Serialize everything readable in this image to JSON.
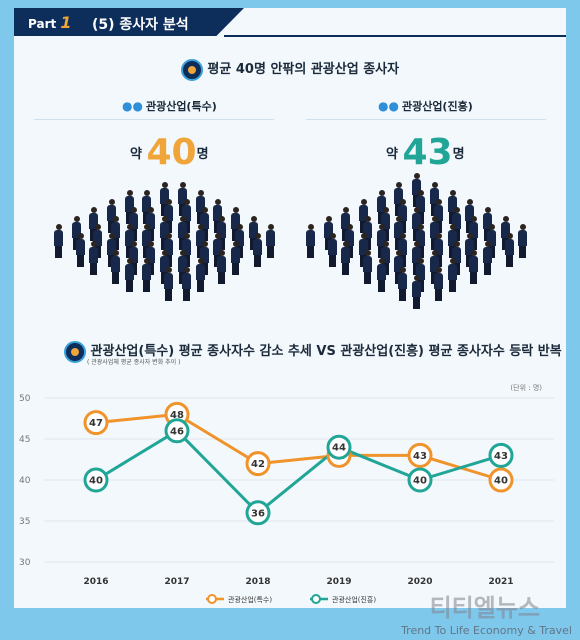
{
  "header": {
    "part_label": "Part",
    "part_number": "1",
    "section_title": "(5) 종사자 분석"
  },
  "infographic": {
    "title": "평균 40명 안팎의 관광산업 종사자",
    "groups": [
      {
        "label": "관광산업(특수)",
        "prefix": "약",
        "value": "40",
        "unit": "명",
        "color": "#f0a53a"
      },
      {
        "label": "관광산업(진흥)",
        "prefix": "약",
        "value": "43",
        "unit": "명",
        "color": "#21a597"
      }
    ]
  },
  "chart_section": {
    "title": "관광산업(특수) 평균 종사자수 감소 추세 VS 관광산업(진흥) 평균 종사자수 등락 반복",
    "subnote": "( 관광사업체 평균 종사자 변화 추이 )"
  },
  "chart_data": {
    "type": "line",
    "x": [
      "2016",
      "2017",
      "2018",
      "2019",
      "2020",
      "2021"
    ],
    "series": [
      {
        "name": "관광산업(특수)",
        "values": [
          47,
          48,
          42,
          43,
          43,
          40
        ],
        "color": "#f0932a"
      },
      {
        "name": "관광산업(진흥)",
        "values": [
          40,
          46,
          36,
          44,
          40,
          43
        ],
        "color": "#21a597"
      }
    ],
    "unit_label": "(단위 : 명)",
    "ylim": [
      30,
      50
    ],
    "yticks": [
      30,
      35,
      40,
      45,
      50
    ],
    "grid": true,
    "legend": "bottom"
  },
  "watermark": {
    "brand": "티티엘뉴스",
    "tagline": "Trend To Life Economy & Travel"
  }
}
